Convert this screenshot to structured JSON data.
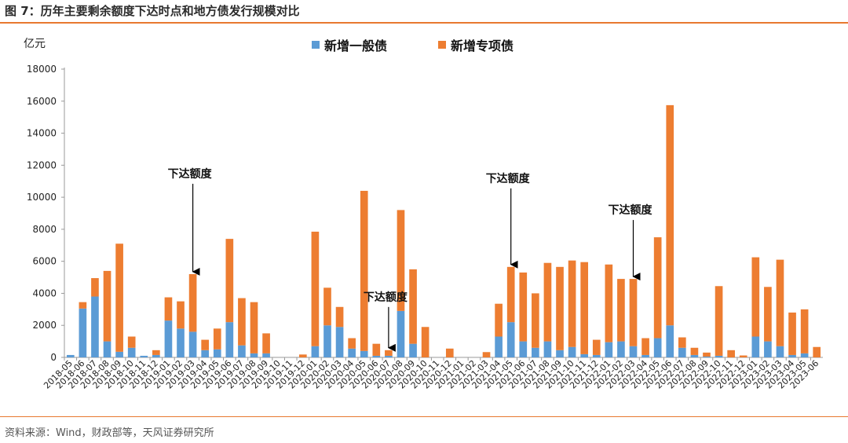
{
  "title": "图 7：历年主要剩余额度下达时点和地方债发行规模对比",
  "source": "资料来源：Wind，财政部等，天风证券研究所",
  "colors": {
    "general": "#5b9bd5",
    "special": "#ed7d31",
    "accent": "#e8782f"
  },
  "chart_data": {
    "type": "bar",
    "stacked": true,
    "unit": "亿元",
    "ylim": [
      0,
      18000
    ],
    "yticks": [
      0,
      2000,
      4000,
      6000,
      8000,
      10000,
      12000,
      14000,
      16000,
      18000
    ],
    "grid": false,
    "legend_position": "top-center",
    "categories": [
      "2018-05",
      "2018-06",
      "2018-07",
      "2018-08",
      "2018-09",
      "2018-10",
      "2018-11",
      "2018-12",
      "2019-01",
      "2019-02",
      "2019-03",
      "2019-04",
      "2019-05",
      "2019-06",
      "2019-07",
      "2019-08",
      "2019-09",
      "2019-10",
      "2019-11",
      "2019-12",
      "2020-01",
      "2020-02",
      "2020-03",
      "2020-04",
      "2020-05",
      "2020-06",
      "2020-07",
      "2020-08",
      "2020-09",
      "2020-10",
      "2020-11",
      "2020-12",
      "2021-01",
      "2021-02",
      "2021-03",
      "2021-04",
      "2021-05",
      "2021-06",
      "2021-07",
      "2021-08",
      "2021-09",
      "2021-10",
      "2021-11",
      "2021-12",
      "2022-01",
      "2022-02",
      "2022-03",
      "2022-04",
      "2022-05",
      "2022-06",
      "2022-07",
      "2022-08",
      "2022-09",
      "2022-10",
      "2022-11",
      "2022-12",
      "2023-01",
      "2023-02",
      "2023-03",
      "2023-04",
      "2023-05",
      "2023-06"
    ],
    "series": [
      {
        "name": "新增一般债",
        "values": [
          150,
          3050,
          3800,
          1000,
          350,
          600,
          100,
          150,
          2300,
          1800,
          1600,
          450,
          500,
          2200,
          750,
          250,
          250,
          0,
          0,
          0,
          700,
          2000,
          1900,
          550,
          400,
          100,
          100,
          2900,
          850,
          0,
          0,
          0,
          0,
          0,
          0,
          1300,
          2200,
          1000,
          600,
          1000,
          450,
          650,
          200,
          150,
          950,
          1000,
          700,
          150,
          1200,
          2000,
          600,
          150,
          50,
          100,
          0,
          0,
          1300,
          1000,
          700,
          150,
          250,
          0
        ]
      },
      {
        "name": "新增专项债",
        "values": [
          0,
          400,
          1150,
          4400,
          6750,
          700,
          0,
          300,
          1450,
          1700,
          3600,
          650,
          1300,
          5200,
          2950,
          3200,
          1250,
          0,
          0,
          180,
          7150,
          2350,
          1250,
          650,
          10000,
          750,
          350,
          6300,
          4650,
          1900,
          0,
          550,
          0,
          0,
          330,
          2050,
          3450,
          4300,
          3400,
          4900,
          5200,
          5400,
          5750,
          950,
          4850,
          3900,
          4200,
          1050,
          6300,
          13750,
          650,
          450,
          250,
          4350,
          450,
          120,
          4950,
          3400,
          5400,
          2650,
          2750,
          650
        ]
      }
    ],
    "annotations": [
      {
        "text": "下达额度",
        "category": "2019-03"
      },
      {
        "text": "下达额度",
        "category": "2020-07"
      },
      {
        "text": "下达额度",
        "category": "2021-05"
      },
      {
        "text": "下达额度",
        "category": "2022-03"
      }
    ]
  }
}
